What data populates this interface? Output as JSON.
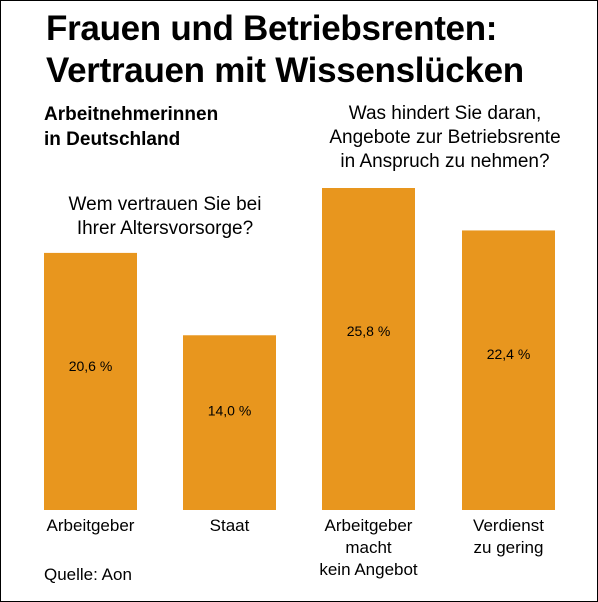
{
  "title_lines": [
    "Frauen und Betriebsrenten:",
    "Vertrauen mit Wissenslücken"
  ],
  "subtitle_lines": [
    "Arbeitnehmerinnen",
    "in Deutschland"
  ],
  "question_1_lines": [
    "Wem vertrauen Sie bei",
    "Ihrer Altersvorsorge?"
  ],
  "question_2_lines": [
    "Was hindert Sie daran,",
    "Angebote zur Betriebsrente",
    "in Anspruch zu nehmen?"
  ],
  "source": "Quelle: Aon",
  "chart_data": {
    "type": "bar",
    "categories": [
      [
        "Arbeitgeber"
      ],
      [
        "Staat"
      ],
      [
        "Arbeitgeber",
        "macht",
        "kein Angebot"
      ],
      [
        "Verdienst",
        "zu gering"
      ]
    ],
    "values": [
      20.6,
      14.0,
      25.8,
      22.4
    ],
    "value_labels": [
      "20,6 %",
      "14,0 %",
      "25,8 %",
      "22,4 %"
    ],
    "groups": [
      {
        "question": "Wem vertrauen Sie bei Ihrer Altersvorsorge?",
        "categories": [
          0,
          1
        ]
      },
      {
        "question": "Was hindert Sie daran, Angebote zur Betriebsrente in Anspruch zu nehmen?",
        "categories": [
          2,
          3
        ]
      }
    ],
    "ylim": [
      0,
      25.8
    ],
    "grid": false,
    "bar_color": "#E8961E",
    "label_color": "#000000"
  }
}
